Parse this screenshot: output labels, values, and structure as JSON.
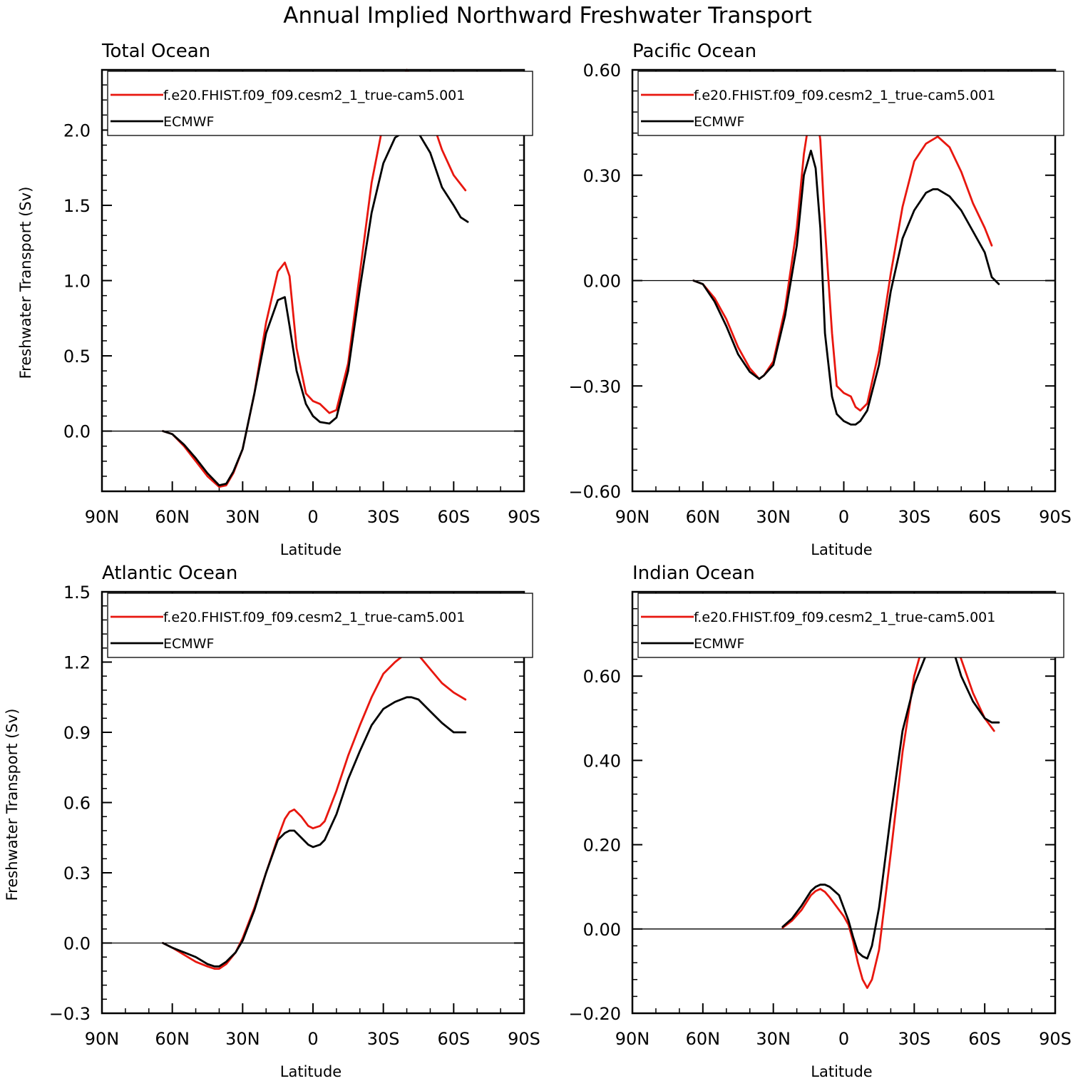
{
  "figure": {
    "title": "Annual Implied Northward Freshwater Transport"
  },
  "chart_data": [
    {
      "type": "line",
      "title": "Total Ocean",
      "xlabel": "Latitude",
      "ylabel": "Freshwater Transport (Sv)",
      "xlim": [
        90,
        -90
      ],
      "ylim": [
        -0.4,
        2.4
      ],
      "xticks": [
        90,
        60,
        30,
        0,
        -30,
        -60,
        -90
      ],
      "xtick_labels": [
        "90N",
        "60N",
        "30N",
        "0",
        "30S",
        "60S",
        "90S"
      ],
      "yticks": [
        0.0,
        0.5,
        1.0,
        1.5,
        2.0
      ],
      "ytick_labels": [
        "0.0",
        "0.5",
        "1.0",
        "1.5",
        "2.0"
      ],
      "zero_line": true,
      "legend": "top",
      "series": [
        {
          "name": "f.e20.FHIST.f09_f09.cesm2_1_true-cam5.001",
          "color": "#e8170f",
          "x": [
            64,
            60,
            55,
            50,
            45,
            40,
            37,
            34,
            30,
            25,
            20,
            15,
            12,
            10,
            7,
            3,
            0,
            -3,
            -7,
            -10,
            -15,
            -20,
            -25,
            -30,
            -35,
            -40,
            -45,
            -50,
            -55,
            -60,
            -65
          ],
          "y": [
            0,
            -0.02,
            -0.1,
            -0.2,
            -0.3,
            -0.37,
            -0.36,
            -0.28,
            -0.12,
            0.25,
            0.72,
            1.06,
            1.12,
            1.03,
            0.55,
            0.25,
            0.2,
            0.18,
            0.12,
            0.14,
            0.45,
            1.05,
            1.65,
            2.05,
            2.3,
            2.4,
            2.32,
            2.1,
            1.87,
            1.7,
            1.6
          ]
        },
        {
          "name": "ECMWF",
          "color": "#000000",
          "x": [
            64,
            60,
            55,
            50,
            45,
            40,
            37,
            34,
            30,
            25,
            20,
            15,
            12,
            10,
            7,
            3,
            0,
            -3,
            -7,
            -10,
            -15,
            -20,
            -25,
            -30,
            -35,
            -40,
            -42,
            -45,
            -50,
            -55,
            -60,
            -63,
            -66
          ],
          "y": [
            0,
            -0.02,
            -0.09,
            -0.18,
            -0.28,
            -0.36,
            -0.35,
            -0.27,
            -0.12,
            0.25,
            0.65,
            0.87,
            0.89,
            0.7,
            0.4,
            0.18,
            0.1,
            0.06,
            0.05,
            0.09,
            0.4,
            0.95,
            1.45,
            1.78,
            1.95,
            2.0,
            2.01,
            1.98,
            1.85,
            1.62,
            1.5,
            1.42,
            1.39
          ]
        }
      ]
    },
    {
      "type": "line",
      "title": "Pacific Ocean",
      "xlabel": "Latitude",
      "ylabel": "",
      "xlim": [
        90,
        -90
      ],
      "ylim": [
        -0.6,
        0.6
      ],
      "xticks": [
        90,
        60,
        30,
        0,
        -30,
        -60,
        -90
      ],
      "xtick_labels": [
        "90N",
        "60N",
        "30N",
        "0",
        "30S",
        "60S",
        "90S"
      ],
      "yticks": [
        -0.6,
        -0.3,
        0.0,
        0.3,
        0.6
      ],
      "ytick_labels": [
        "−0.60",
        "−0.30",
        "0.00",
        "0.30",
        "0.60"
      ],
      "zero_line": true,
      "legend": "top",
      "series": [
        {
          "name": "f.e20.FHIST.f09_f09.cesm2_1_true-cam5.001",
          "color": "#e8170f",
          "x": [
            64,
            60,
            55,
            50,
            45,
            40,
            36,
            34,
            30,
            25,
            20,
            17,
            14,
            12,
            10,
            8,
            5,
            3,
            0,
            -3,
            -5,
            -7,
            -10,
            -15,
            -20,
            -25,
            -30,
            -35,
            -40,
            -45,
            -50,
            -55,
            -60,
            -63
          ],
          "y": [
            0,
            -0.01,
            -0.05,
            -0.11,
            -0.19,
            -0.25,
            -0.28,
            -0.27,
            -0.23,
            -0.08,
            0.15,
            0.36,
            0.49,
            0.5,
            0.4,
            0.15,
            -0.15,
            -0.3,
            -0.32,
            -0.33,
            -0.36,
            -0.37,
            -0.35,
            -0.2,
            0.02,
            0.21,
            0.34,
            0.39,
            0.41,
            0.38,
            0.31,
            0.22,
            0.15,
            0.1
          ]
        },
        {
          "name": "ECMWF",
          "color": "#000000",
          "x": [
            64,
            60,
            55,
            50,
            45,
            40,
            36,
            34,
            30,
            25,
            20,
            17,
            14,
            12,
            10,
            8,
            5,
            3,
            0,
            -3,
            -5,
            -7,
            -10,
            -15,
            -20,
            -25,
            -30,
            -35,
            -38,
            -40,
            -45,
            -50,
            -55,
            -60,
            -63,
            -66
          ],
          "y": [
            0,
            -0.01,
            -0.06,
            -0.13,
            -0.21,
            -0.26,
            -0.28,
            -0.27,
            -0.24,
            -0.1,
            0.1,
            0.3,
            0.37,
            0.32,
            0.15,
            -0.15,
            -0.33,
            -0.38,
            -0.4,
            -0.41,
            -0.41,
            -0.4,
            -0.37,
            -0.24,
            -0.03,
            0.12,
            0.2,
            0.25,
            0.26,
            0.26,
            0.24,
            0.2,
            0.14,
            0.08,
            0.01,
            -0.01
          ]
        }
      ]
    },
    {
      "type": "line",
      "title": "Atlantic Ocean",
      "xlabel": "Latitude",
      "ylabel": "Freshwater Transport (Sv)",
      "xlim": [
        90,
        -90
      ],
      "ylim": [
        -0.3,
        1.5
      ],
      "xticks": [
        90,
        60,
        30,
        0,
        -30,
        -60,
        -90
      ],
      "xtick_labels": [
        "90N",
        "60N",
        "30N",
        "0",
        "30S",
        "60S",
        "90S"
      ],
      "yticks": [
        -0.3,
        0.0,
        0.3,
        0.6,
        0.9,
        1.2,
        1.5
      ],
      "ytick_labels": [
        "−0.3",
        "0.0",
        "0.3",
        "0.6",
        "0.9",
        "1.2",
        "1.5"
      ],
      "zero_line": true,
      "legend": "top",
      "series": [
        {
          "name": "f.e20.FHIST.f09_f09.cesm2_1_true-cam5.001",
          "color": "#e8170f",
          "x": [
            64,
            60,
            55,
            50,
            45,
            42,
            40,
            37,
            33,
            30,
            25,
            20,
            15,
            12,
            10,
            8,
            5,
            2,
            0,
            -3,
            -5,
            -10,
            -15,
            -20,
            -25,
            -30,
            -35,
            -40,
            -45,
            -50,
            -55,
            -60,
            -65
          ],
          "y": [
            0,
            -0.02,
            -0.05,
            -0.08,
            -0.1,
            -0.11,
            -0.11,
            -0.09,
            -0.04,
            0.02,
            0.15,
            0.3,
            0.45,
            0.53,
            0.56,
            0.57,
            0.54,
            0.5,
            0.49,
            0.5,
            0.52,
            0.65,
            0.8,
            0.93,
            1.05,
            1.15,
            1.2,
            1.24,
            1.23,
            1.17,
            1.11,
            1.07,
            1.04
          ]
        },
        {
          "name": "ECMWF",
          "color": "#000000",
          "x": [
            64,
            60,
            55,
            50,
            45,
            42,
            40,
            37,
            33,
            30,
            25,
            20,
            15,
            12,
            10,
            8,
            5,
            2,
            0,
            -3,
            -5,
            -10,
            -15,
            -20,
            -25,
            -30,
            -35,
            -40,
            -42,
            -45,
            -50,
            -55,
            -60,
            -65
          ],
          "y": [
            0,
            -0.02,
            -0.04,
            -0.06,
            -0.09,
            -0.1,
            -0.1,
            -0.08,
            -0.04,
            0.01,
            0.14,
            0.3,
            0.44,
            0.47,
            0.48,
            0.48,
            0.45,
            0.42,
            0.41,
            0.42,
            0.44,
            0.55,
            0.7,
            0.82,
            0.93,
            1.0,
            1.03,
            1.05,
            1.05,
            1.04,
            0.99,
            0.94,
            0.9,
            0.9
          ]
        }
      ]
    },
    {
      "type": "line",
      "title": "Indian Ocean",
      "xlabel": "Latitude",
      "ylabel": "",
      "xlim": [
        90,
        -90
      ],
      "ylim": [
        -0.2,
        0.8
      ],
      "xticks": [
        90,
        60,
        30,
        0,
        -30,
        -60,
        -90
      ],
      "xtick_labels": [
        "90N",
        "60N",
        "30N",
        "0",
        "30S",
        "60S",
        "90S"
      ],
      "yticks": [
        -0.2,
        0.0,
        0.2,
        0.4,
        0.6
      ],
      "ytick_labels": [
        "−0.20",
        "0.00",
        "0.20",
        "0.40",
        "0.60"
      ],
      "zero_line": true,
      "legend": "top",
      "series": [
        {
          "name": "f.e20.FHIST.f09_f09.cesm2_1_true-cam5.001",
          "color": "#e8170f",
          "x": [
            26,
            22,
            18,
            14,
            12,
            10,
            8,
            6,
            4,
            2,
            0,
            -2,
            -4,
            -6,
            -8,
            -10,
            -12,
            -15,
            -20,
            -25,
            -30,
            -35,
            -40,
            -42,
            -45,
            -50,
            -55,
            -60,
            -64
          ],
          "y": [
            0.003,
            0.02,
            0.045,
            0.08,
            0.09,
            0.095,
            0.088,
            0.075,
            0.06,
            0.045,
            0.03,
            0.01,
            -0.03,
            -0.08,
            -0.12,
            -0.14,
            -0.12,
            -0.05,
            0.18,
            0.42,
            0.6,
            0.7,
            0.74,
            0.74,
            0.72,
            0.64,
            0.56,
            0.5,
            0.47
          ]
        },
        {
          "name": "ECMWF",
          "color": "#000000",
          "x": [
            26,
            22,
            18,
            14,
            12,
            10,
            8,
            6,
            4,
            2,
            0,
            -2,
            -4,
            -6,
            -8,
            -10,
            -12,
            -15,
            -20,
            -25,
            -30,
            -35,
            -38,
            -40,
            -42,
            -45,
            -50,
            -55,
            -60,
            -63,
            -66
          ],
          "y": [
            0.005,
            0.025,
            0.055,
            0.09,
            0.1,
            0.105,
            0.105,
            0.1,
            0.09,
            0.08,
            0.05,
            0.02,
            -0.02,
            -0.055,
            -0.065,
            -0.07,
            -0.04,
            0.05,
            0.27,
            0.47,
            0.58,
            0.65,
            0.68,
            0.7,
            0.7,
            0.69,
            0.6,
            0.54,
            0.5,
            0.49,
            0.49
          ]
        }
      ]
    }
  ]
}
